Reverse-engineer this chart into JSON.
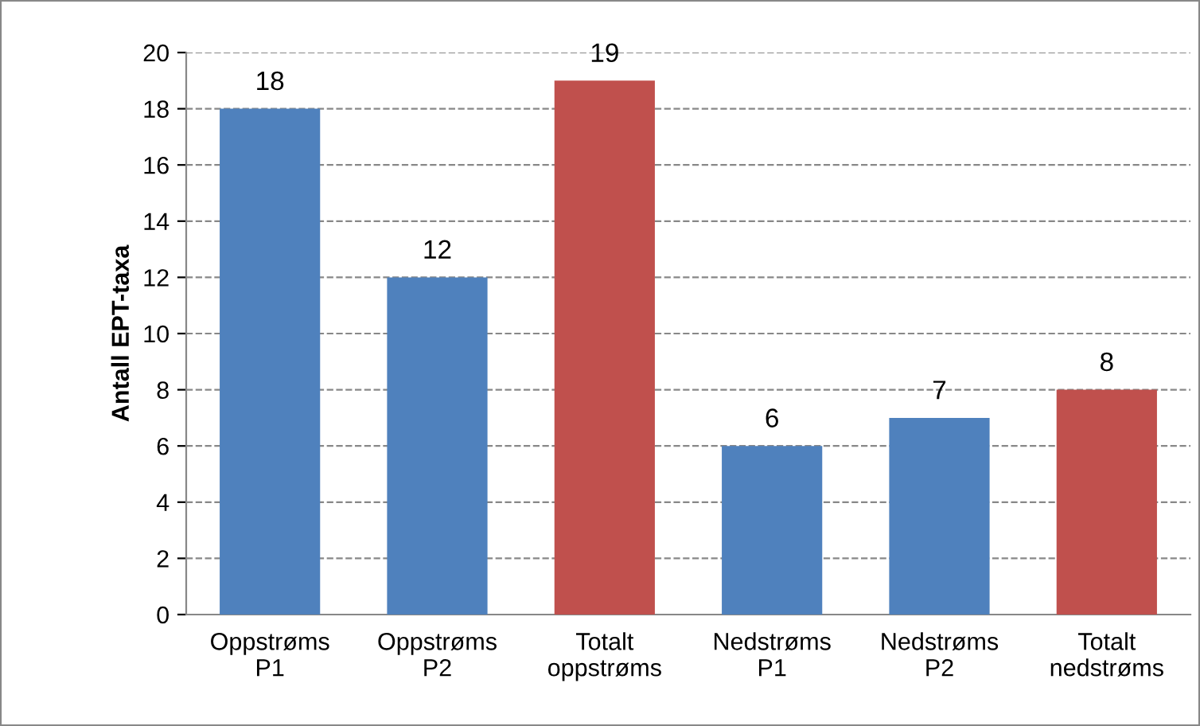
{
  "chart_data": {
    "type": "bar",
    "ylabel": "Antall EPT-taxa",
    "categories": [
      "Oppstrøms\nP1",
      "Oppstrøms\nP2",
      "Totalt\noppstrøms",
      "Nedstrøms\nP1",
      "Nedstrøms\nP2",
      "Totalt\nnedstrøms"
    ],
    "values": [
      18,
      12,
      19,
      6,
      7,
      8
    ],
    "colors": [
      "#4f81bd",
      "#4f81bd",
      "#c0504d",
      "#4f81bd",
      "#4f81bd",
      "#c0504d"
    ],
    "ylim": [
      0,
      20
    ],
    "yticks": [
      0,
      2,
      4,
      6,
      8,
      10,
      12,
      14,
      16,
      18,
      20
    ],
    "grid": "y",
    "data_labels": true,
    "legend": false
  }
}
